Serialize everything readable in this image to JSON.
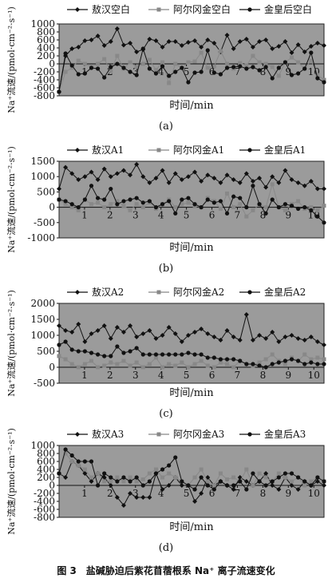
{
  "figure_caption": "图 3　盐碱胁迫后紫花苜蓿根系 Na⁺ 离子流速变化",
  "chart_data": [
    {
      "type": "line",
      "panel_label": "(a)",
      "xlabel": "时间/min",
      "ylabel": "Na⁺流速/(pmol·cm⁻²·s⁻¹)",
      "ylim": [
        -800,
        1000
      ],
      "yticks": [
        -800,
        -600,
        -400,
        -200,
        0,
        200,
        400,
        600,
        800,
        1000
      ],
      "xlim": [
        0,
        10.4
      ],
      "xticks": [
        1,
        2,
        3,
        4,
        5,
        6,
        7,
        8,
        9,
        10
      ],
      "legend_position": "top",
      "series": [
        {
          "name": "敖汉空白",
          "marker": "diamond",
          "color": "#111111",
          "values": [
            -700,
            200,
            380,
            420,
            580,
            600,
            700,
            460,
            560,
            880,
            470,
            520,
            300,
            360,
            620,
            580,
            420,
            560,
            560,
            460,
            540,
            580,
            420,
            600,
            520,
            300,
            720,
            380,
            560,
            620,
            420,
            560,
            600,
            380,
            440,
            560,
            280,
            480,
            300,
            440,
            520,
            460
          ]
        },
        {
          "name": "阿尔冈金空白",
          "marker": "square",
          "color": "#888888",
          "values": [
            -700,
            -200,
            -100,
            80,
            0,
            -80,
            0,
            120,
            -180,
            200,
            -120,
            40,
            -80,
            0,
            100,
            -150,
            40,
            -480,
            0,
            -100,
            40,
            60,
            280,
            -100,
            -60,
            320,
            0,
            -120,
            20,
            -40,
            200,
            40,
            0,
            -80,
            -300,
            40,
            160,
            40,
            -120,
            80,
            -280,
            -400
          ]
        },
        {
          "name": "金皇后空白",
          "marker": "circle",
          "color": "#111111",
          "values": [
            -700,
            260,
            -40,
            -260,
            -240,
            -100,
            -120,
            -340,
            -80,
            0,
            -100,
            -200,
            -280,
            380,
            -120,
            -240,
            -60,
            -300,
            -200,
            -100,
            -460,
            -220,
            -200,
            340,
            -220,
            -260,
            -100,
            -80,
            -60,
            -120,
            -80,
            -160,
            -80,
            -360,
            -100,
            40,
            -280,
            -240,
            -120,
            280,
            -360,
            -460
          ]
        }
      ]
    },
    {
      "type": "line",
      "panel_label": "(b)",
      "xlabel": "时间/min",
      "ylabel": "Na⁺流速/(pmol·cm⁻²·s⁻¹)",
      "ylim": [
        -1000,
        1500
      ],
      "yticks": [
        -1000,
        -500,
        0,
        500,
        1000,
        1500
      ],
      "xlim": [
        0,
        10.4
      ],
      "xticks": [
        1,
        2,
        3,
        4,
        5,
        6,
        7,
        8,
        9,
        10
      ],
      "legend_position": "top",
      "series": [
        {
          "name": "敖汉A1",
          "marker": "diamond",
          "color": "#111111",
          "values": [
            600,
            1300,
            1100,
            900,
            1000,
            1150,
            900,
            1250,
            1000,
            1100,
            1200,
            1050,
            1400,
            1000,
            800,
            950,
            1200,
            800,
            1100,
            900,
            1000,
            1150,
            850,
            1050,
            950,
            800,
            1050,
            900,
            800,
            1100,
            850,
            950,
            650,
            1000,
            800,
            1200,
            900,
            800,
            700,
            850,
            600,
            600
          ]
        },
        {
          "name": "阿尔冈金A1",
          "marker": "square",
          "color": "#888888",
          "values": [
            250,
            100,
            0,
            -100,
            250,
            100,
            150,
            0,
            100,
            200,
            50,
            -100,
            100,
            0,
            150,
            -50,
            100,
            250,
            0,
            100,
            150,
            50,
            0,
            300,
            200,
            -50,
            450,
            0,
            100,
            -300,
            -100,
            100,
            0,
            750,
            0,
            -100,
            100,
            200,
            -50,
            0,
            -100,
            50
          ]
        },
        {
          "name": "金皇后A1",
          "marker": "circle",
          "color": "#111111",
          "values": [
            250,
            200,
            100,
            0,
            250,
            700,
            300,
            250,
            600,
            100,
            200,
            250,
            300,
            150,
            200,
            0,
            100,
            200,
            -200,
            250,
            300,
            100,
            0,
            250,
            150,
            200,
            -200,
            350,
            300,
            0,
            700,
            100,
            -200,
            250,
            0,
            100,
            50,
            -50,
            0,
            -100,
            -300,
            -500
          ]
        }
      ]
    },
    {
      "type": "line",
      "panel_label": "(c)",
      "xlabel": "时间/min",
      "ylabel": "Na⁺流速/(pmol·cm⁻²·s⁻¹)",
      "ylim": [
        -500,
        2000
      ],
      "yticks": [
        -500,
        0,
        500,
        1000,
        1500,
        2000
      ],
      "xlim": [
        0,
        10.4
      ],
      "xticks": [
        1,
        2,
        3,
        4,
        5,
        6,
        7,
        8,
        9,
        10
      ],
      "legend_position": "top",
      "series": [
        {
          "name": "敖汉A2",
          "marker": "diamond",
          "color": "#111111",
          "values": [
            1300,
            1150,
            1100,
            1350,
            800,
            1050,
            1150,
            1300,
            900,
            1250,
            1100,
            1300,
            950,
            1050,
            1150,
            900,
            1000,
            1250,
            1050,
            800,
            1000,
            1100,
            1200,
            1050,
            950,
            850,
            1150,
            950,
            850,
            1650,
            850,
            1000,
            900,
            1100,
            800,
            950,
            1000,
            900,
            850,
            950,
            800,
            700
          ]
        },
        {
          "name": "阿尔冈金A2",
          "marker": "square",
          "color": "#888888",
          "values": [
            350,
            250,
            100,
            0,
            100,
            200,
            0,
            50,
            150,
            100,
            200,
            50,
            150,
            0,
            100,
            300,
            0,
            100,
            50,
            150,
            0,
            100,
            200,
            50,
            0,
            150,
            100,
            0,
            200,
            100,
            50,
            150,
            250,
            400,
            200,
            100,
            300,
            200,
            400,
            250,
            300,
            250
          ]
        },
        {
          "name": "金皇后A2",
          "marker": "circle",
          "color": "#111111",
          "values": [
            700,
            800,
            550,
            500,
            500,
            450,
            400,
            350,
            350,
            650,
            450,
            500,
            600,
            400,
            400,
            400,
            400,
            400,
            400,
            400,
            450,
            400,
            400,
            300,
            300,
            250,
            250,
            250,
            200,
            100,
            100,
            50,
            0,
            100,
            150,
            200,
            250,
            200,
            100,
            150,
            100,
            100
          ]
        }
      ]
    },
    {
      "type": "line",
      "panel_label": "(d)",
      "xlabel": "时间/min",
      "ylabel": "Na⁺流速/(pmol·cm⁻²·s⁻¹)",
      "ylim": [
        -800,
        1000
      ],
      "yticks": [
        -800,
        -600,
        -400,
        -200,
        0,
        200,
        400,
        600,
        800,
        1000
      ],
      "xlim": [
        0,
        10.4
      ],
      "xticks": [
        1,
        2,
        3,
        4,
        5,
        6,
        7,
        8,
        9,
        10
      ],
      "legend_position": "top",
      "series": [
        {
          "name": "敖汉A3",
          "marker": "diamond",
          "color": "#111111",
          "values": [
            300,
            200,
            600,
            500,
            300,
            100,
            300,
            200,
            0,
            -300,
            -500,
            -200,
            -300,
            -300,
            -300,
            300,
            -100,
            0,
            200,
            0,
            0,
            -400,
            -200,
            200,
            0,
            100,
            0,
            -100,
            200,
            100,
            0,
            100,
            300,
            0,
            -100,
            200,
            0,
            -100,
            100,
            0,
            100,
            0
          ]
        },
        {
          "name": "阿尔冈金A3",
          "marker": "square",
          "color": "#888888",
          "values": [
            300,
            800,
            600,
            500,
            400,
            200,
            300,
            100,
            100,
            200,
            100,
            200,
            100,
            150,
            300,
            400,
            200,
            300,
            200,
            100,
            0,
            200,
            400,
            100,
            0,
            300,
            150,
            200,
            100,
            400,
            0,
            300,
            200,
            100,
            300,
            200,
            100,
            200,
            0,
            100,
            200,
            100
          ]
        },
        {
          "name": "金皇后A3",
          "marker": "circle",
          "color": "#111111",
          "values": [
            300,
            900,
            750,
            600,
            600,
            600,
            0,
            300,
            200,
            100,
            200,
            100,
            200,
            0,
            100,
            300,
            400,
            500,
            700,
            100,
            0,
            -100,
            200,
            0,
            -100,
            100,
            0,
            0,
            100,
            -100,
            300,
            100,
            0,
            100,
            200,
            300,
            300,
            200,
            100,
            0,
            200,
            100
          ]
        }
      ]
    }
  ]
}
